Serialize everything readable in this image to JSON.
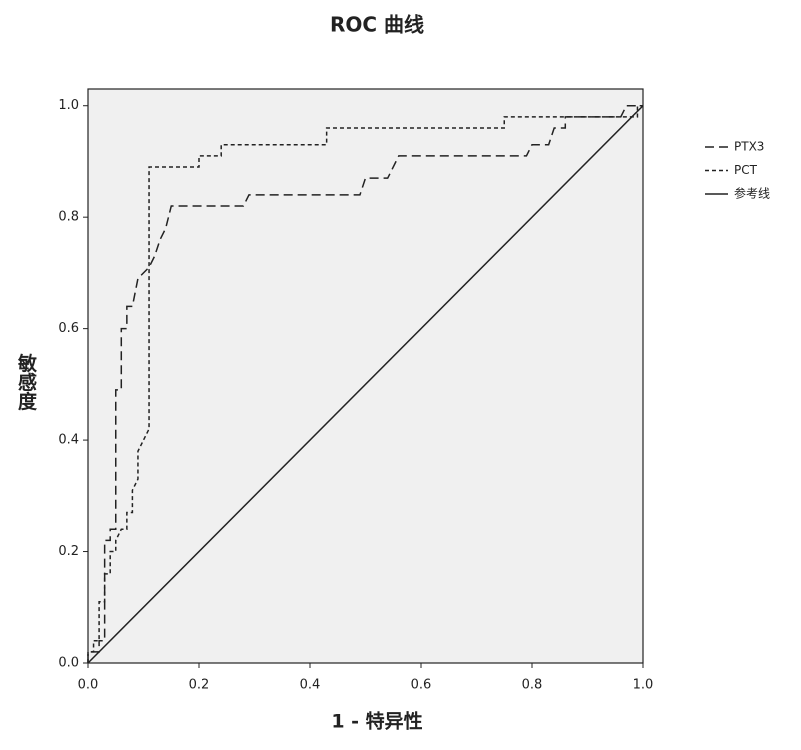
{
  "chart_data": {
    "type": "line",
    "title": "ROC 曲线",
    "xlabel": "1 - 特异性",
    "ylabel": "敏感度",
    "xlim": [
      0,
      1
    ],
    "ylim": [
      0,
      1.03
    ],
    "xticks": [
      {
        "value": 0,
        "label": "0.0"
      },
      0.2,
      0.4,
      0.6,
      0.8,
      {
        "value": 1,
        "label": "1.0"
      }
    ],
    "yticks": [
      {
        "value": 0,
        "label": "0.0"
      },
      0.2,
      0.4,
      0.6,
      0.8,
      {
        "value": 1,
        "label": "1.0"
      }
    ],
    "series": [
      {
        "name": "PTX3",
        "color": "#222222",
        "dash": "long",
        "x": [
          0,
          0,
          0.02,
          0.02,
          0.03,
          0.03,
          0.04,
          0.04,
          0.05,
          0.05,
          0.06,
          0.06,
          0.07,
          0.07,
          0.08,
          0.09,
          0.11,
          0.12,
          0.13,
          0.14,
          0.15,
          0.28,
          0.29,
          0.49,
          0.5,
          0.54,
          0.56,
          0.79,
          0.8,
          0.83,
          0.84,
          0.86,
          0.86,
          0.96,
          0.97,
          1
        ],
        "values": [
          0,
          0.02,
          0.02,
          0.04,
          0.04,
          0.22,
          0.22,
          0.24,
          0.24,
          0.49,
          0.49,
          0.6,
          0.6,
          0.64,
          0.64,
          0.69,
          0.71,
          0.73,
          0.76,
          0.78,
          0.82,
          0.82,
          0.84,
          0.84,
          0.87,
          0.87,
          0.91,
          0.91,
          0.93,
          0.93,
          0.96,
          0.96,
          0.98,
          0.98,
          1,
          1
        ]
      },
      {
        "name": "PCT",
        "color": "#222222",
        "dash": "short",
        "x": [
          0,
          0,
          0.01,
          0.01,
          0.02,
          0.02,
          0.03,
          0.03,
          0.04,
          0.04,
          0.05,
          0.05,
          0.06,
          0.07,
          0.07,
          0.08,
          0.08,
          0.09,
          0.09,
          0.1,
          0.11,
          0.11,
          0.2,
          0.2,
          0.24,
          0.24,
          0.43,
          0.43,
          0.75,
          0.75,
          0.99,
          0.99,
          1
        ],
        "values": [
          0,
          0.02,
          0.02,
          0.04,
          0.04,
          0.11,
          0.11,
          0.16,
          0.16,
          0.2,
          0.2,
          0.22,
          0.24,
          0.24,
          0.27,
          0.27,
          0.31,
          0.33,
          0.38,
          0.4,
          0.42,
          0.89,
          0.89,
          0.91,
          0.91,
          0.93,
          0.93,
          0.96,
          0.96,
          0.98,
          0.98,
          1,
          1
        ]
      },
      {
        "name": "参考线",
        "color": "#222222",
        "dash": "solid",
        "x": [
          0,
          1
        ],
        "values": [
          0,
          1
        ]
      }
    ]
  }
}
